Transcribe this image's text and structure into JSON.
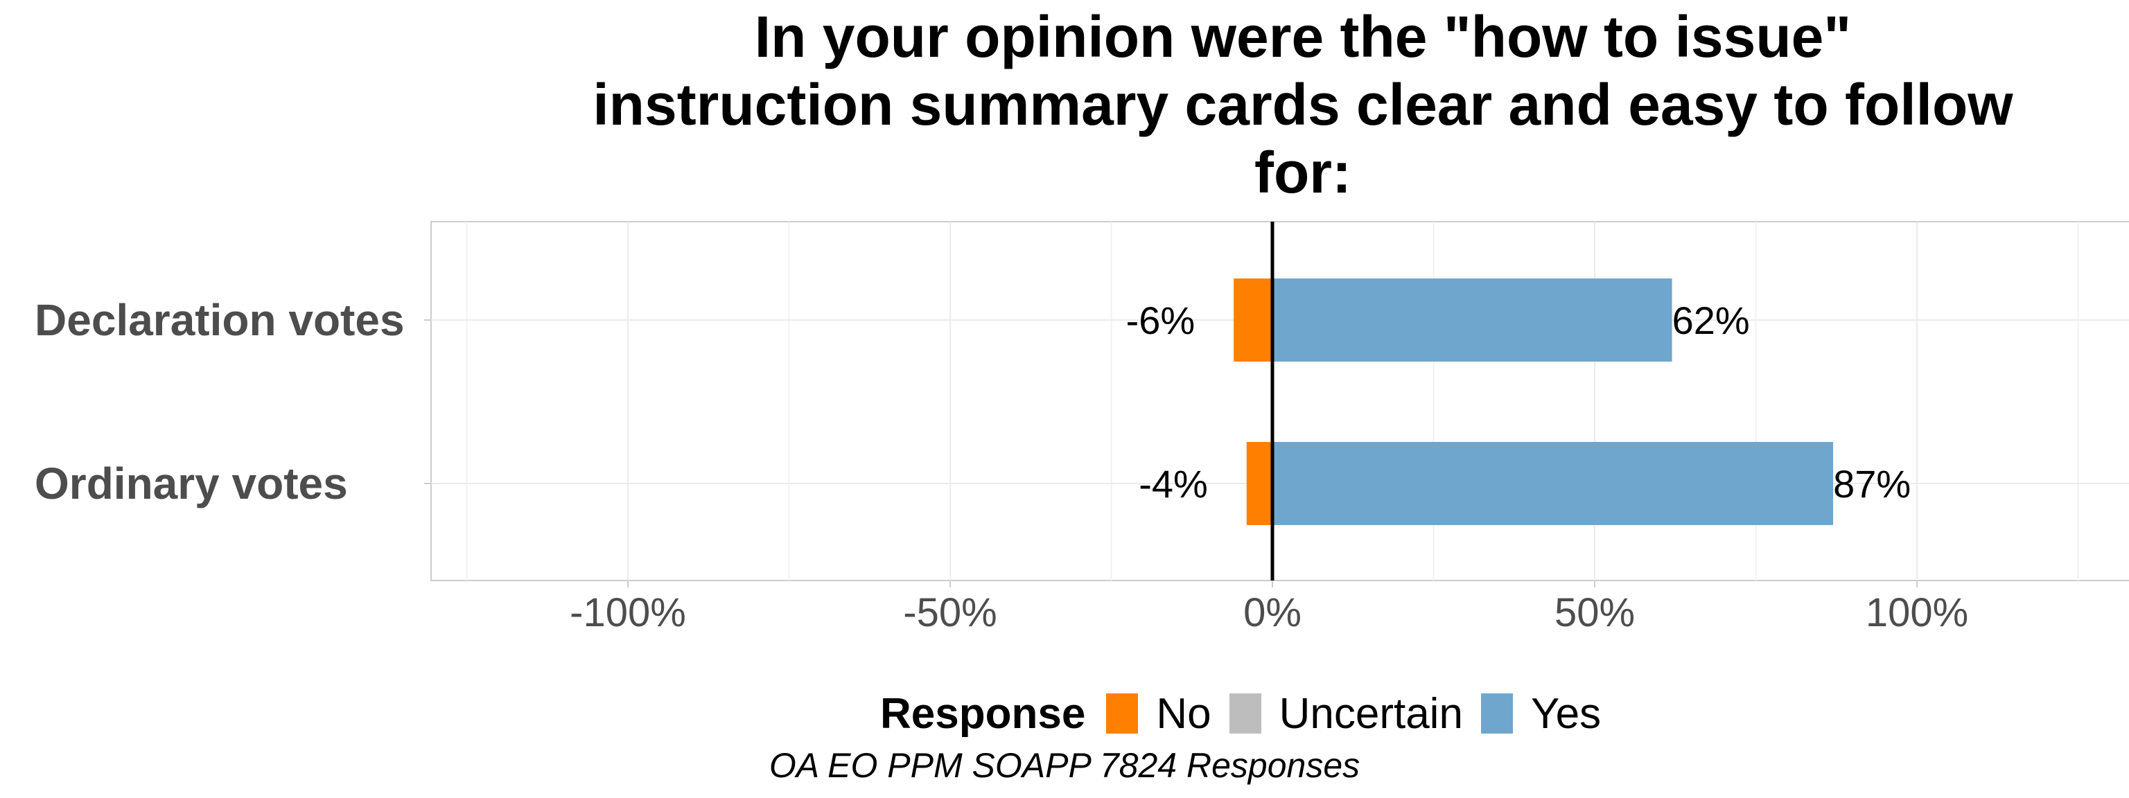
{
  "chart_data": {
    "type": "bar",
    "orientation": "horizontal",
    "stacked": "diverging",
    "title": "In your opinion were the \"how to issue\"\ninstruction summary cards clear and easy to follow\nfor:",
    "categories": [
      "Declaration votes",
      "Ordinary votes"
    ],
    "series": [
      {
        "name": "No",
        "color": "#ff7f00",
        "values": [
          -6,
          -4
        ],
        "labels": [
          "-6%",
          "-4%"
        ]
      },
      {
        "name": "Uncertain",
        "color": "#bdbdbd",
        "values": [
          0,
          0
        ],
        "labels": [
          "",
          ""
        ]
      },
      {
        "name": "Yes",
        "color": "#6ea6cd",
        "values": [
          62,
          87
        ],
        "labels": [
          "62%",
          "87%"
        ]
      }
    ],
    "xlim": [
      -125,
      125
    ],
    "xticks": [
      -100,
      -50,
      0,
      50,
      100
    ],
    "xtick_labels": [
      "-100%",
      "-50%",
      "0%",
      "50%",
      "100%"
    ],
    "grid": true,
    "legend": {
      "title": "Response",
      "position": "bottom",
      "items": [
        "No",
        "Uncertain",
        "Yes"
      ]
    },
    "caption": "OA EO PPM SOAPP 7824 Responses"
  }
}
